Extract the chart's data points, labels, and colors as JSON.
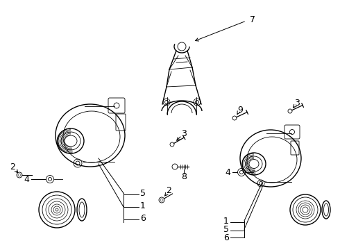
{
  "background_color": "#ffffff",
  "line_color": "#000000",
  "label_color": "#000000",
  "fs": 9,
  "lw_main": 1.0,
  "lw_thin": 0.6,
  "lw_leader": 0.7
}
